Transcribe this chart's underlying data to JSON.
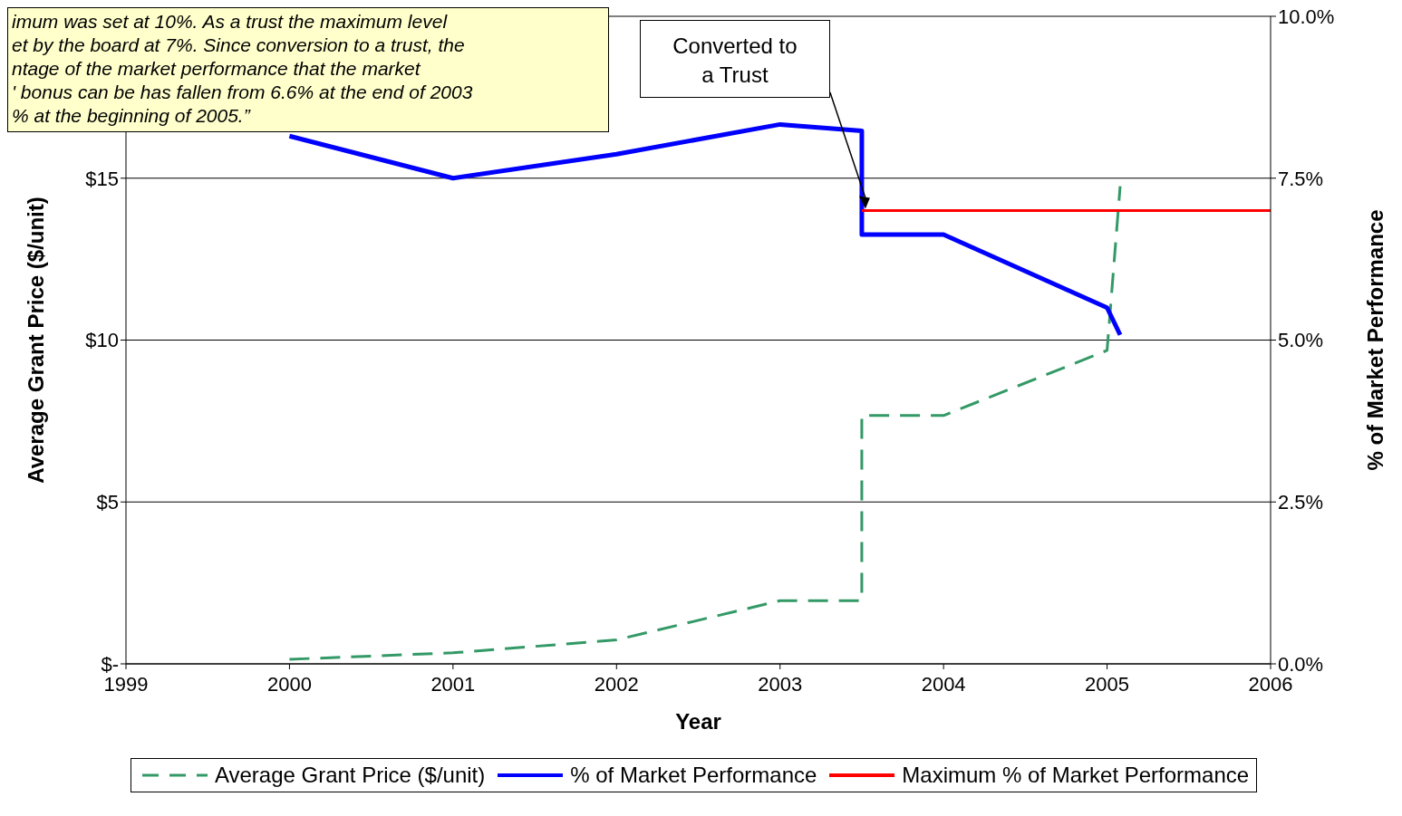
{
  "chart_data": {
    "type": "line",
    "xlabel": "Year",
    "ylabel": "Average Grant Price ($/unit)",
    "y2label": "% of Market Performance",
    "xlim": [
      1999,
      2006
    ],
    "xticks": [
      1999,
      2000,
      2001,
      2002,
      2003,
      2004,
      2005,
      2006
    ],
    "ylim": [
      0,
      20
    ],
    "yticks": [
      {
        "value": 0,
        "label": "$-"
      },
      {
        "value": 5,
        "label": "$5"
      },
      {
        "value": 10,
        "label": "$10"
      },
      {
        "value": 15,
        "label": "$15"
      },
      {
        "value": 20,
        "label": null
      }
    ],
    "y2lim": [
      0,
      10
    ],
    "y2ticks": [
      {
        "value": 0,
        "label": "0.0%"
      },
      {
        "value": 2.5,
        "label": "2.5%"
      },
      {
        "value": 5,
        "label": "5.0%"
      },
      {
        "value": 7.5,
        "label": "7.5%"
      },
      {
        "value": 10,
        "label": "10.0%"
      }
    ],
    "grid": "y",
    "legend": "bottom",
    "marker": "none",
    "series": [
      {
        "name": "Average Grant Price ($/unit)",
        "color": "#339966",
        "line_style": "dashed",
        "x": [
          2000,
          2001,
          2002,
          2003,
          2003.5,
          2003.5,
          2004,
          2005,
          2005.08
        ],
        "values": [
          0.14,
          0.34,
          0.74,
          1.95,
          1.95,
          7.67,
          7.67,
          9.68,
          14.75
        ]
      },
      {
        "name": "% of Market Performance",
        "color": "#0000ff",
        "line_style": "solid",
        "axis": "y2",
        "x": [
          2000,
          2001,
          2002,
          2003,
          2003.5,
          2003.5,
          2004,
          2005,
          2005.08
        ],
        "values": [
          8.15,
          7.5,
          7.87,
          8.33,
          8.23,
          6.63,
          6.63,
          5.5,
          5.08
        ]
      },
      {
        "name": "Maximum % of Market Performance",
        "color": "#ff0000",
        "line_style": "solid",
        "axis": "y2",
        "x": [
          2003.5,
          2006
        ],
        "values": [
          7,
          7
        ]
      }
    ],
    "annotations": [
      "imum was set at 10%. As a trust the maximum level\net by the board at 7%. Since conversion to a trust, the\nntage of the market performance that the market\n' bonus can be has fallen from 6.6% at the end of 2003\n% at the beginning of 2005.”",
      "Converted to\na Trust"
    ]
  }
}
